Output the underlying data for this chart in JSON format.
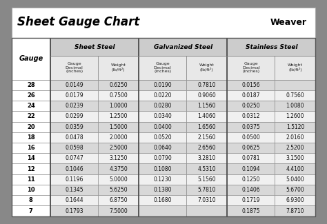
{
  "title": "Sheet Gauge Chart",
  "logo_text": "Weaver",
  "section_headers": [
    "Sheet Steel",
    "Galvanized Steel",
    "Stainless Steel"
  ],
  "gauges": [
    28,
    26,
    24,
    22,
    20,
    18,
    16,
    14,
    12,
    11,
    10,
    8,
    7
  ],
  "sheet_steel_decimal": [
    "0.0149",
    "0.0179",
    "0.0239",
    "0.0299",
    "0.0359",
    "0.0478",
    "0.0598",
    "0.0747",
    "0.1046",
    "0.1196",
    "0.1345",
    "0.1644",
    "0.1793"
  ],
  "sheet_steel_weight": [
    "0.6250",
    "0.7500",
    "1.0000",
    "1.2500",
    "1.5000",
    "2.0000",
    "2.5000",
    "3.1250",
    "4.3750",
    "5.0000",
    "5.6250",
    "6.8750",
    "7.5000"
  ],
  "galv_decimal": [
    "0.0190",
    "0.0220",
    "0.0280",
    "0.0340",
    "0.0400",
    "0.0520",
    "0.0640",
    "0.0790",
    "0.1080",
    "0.1230",
    "0.1380",
    "0.1680",
    ""
  ],
  "galv_weight": [
    "0.7810",
    "0.9060",
    "1.1560",
    "1.4060",
    "1.6560",
    "2.1560",
    "2.6560",
    "3.2810",
    "4.5310",
    "5.1560",
    "5.7810",
    "7.0310",
    ""
  ],
  "ss_decimal": [
    "0.0156",
    "0.0187",
    "0.0250",
    "0.0312",
    "0.0375",
    "0.0500",
    "0.0625",
    "0.0781",
    "0.1094",
    "0.1250",
    "0.1406",
    "0.1719",
    "0.1875"
  ],
  "ss_weight": [
    "",
    "0.7560",
    "1.0080",
    "1.2600",
    "1.5120",
    "2.0160",
    "2.5200",
    "3.1500",
    "4.4100",
    "5.0400",
    "5.6700",
    "6.9300",
    "7.8710"
  ],
  "bg_outer": "#888888",
  "bg_title": "#ffffff",
  "bg_section": "#cccccc",
  "bg_subheader": "#e0e0e0",
  "bg_gauge_header": "#ffffff",
  "row_colors": [
    "#d8d8d8",
    "#f0f0f0"
  ],
  "border_color": "#888888",
  "thick_border": "#444444"
}
